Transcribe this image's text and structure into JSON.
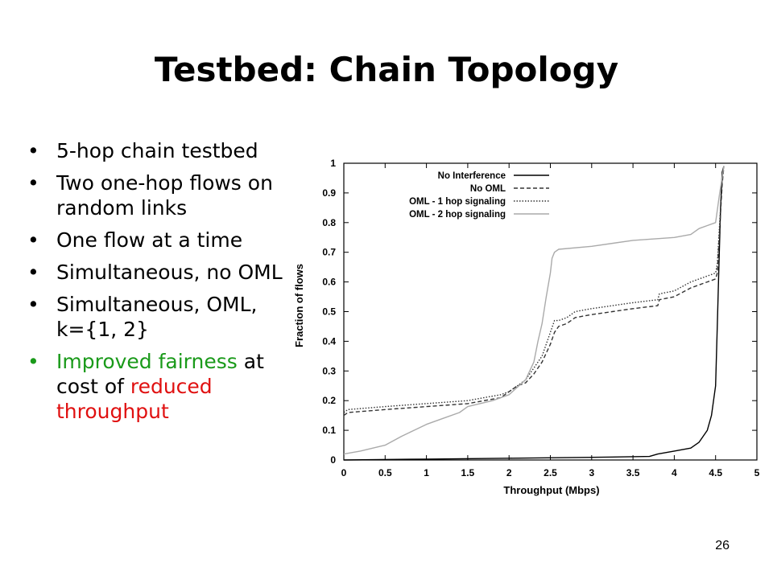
{
  "slide": {
    "title": "Testbed: Chain Topology",
    "page_number": "26",
    "bullet_glyph": "•",
    "bullets": [
      "5-hop chain testbed",
      "Two one-hop flows on random links",
      "One flow at a time",
      "Simultaneous, no OML",
      "Simultaneous, OML, k={1, 2}"
    ],
    "last_bullet": {
      "part1": "Improved fairness",
      "part2": " at cost of ",
      "part3": "reduced throughput"
    },
    "colors": {
      "green": "#1a9a1a",
      "red": "#e01010"
    }
  },
  "chart_data": {
    "type": "line",
    "xlabel": "Throughput (Mbps)",
    "ylabel": "Fraction of flows",
    "xlim": [
      0,
      5
    ],
    "ylim": [
      0,
      1
    ],
    "xticks": [
      "0",
      "0.5",
      "1",
      "1.5",
      "2",
      "2.5",
      "3",
      "3.5",
      "4",
      "4.5",
      "5"
    ],
    "yticks": [
      "0",
      "0.1",
      "0.2",
      "0.3",
      "0.4",
      "0.5",
      "0.6",
      "0.7",
      "0.8",
      "0.9",
      "1"
    ],
    "grid": false,
    "legend_position": "top-right",
    "series": [
      {
        "name": "No Interference",
        "style": "solid",
        "color": "#000000",
        "x": [
          0,
          1.0,
          2.0,
          3.0,
          3.7,
          3.8,
          4.0,
          4.2,
          4.3,
          4.4,
          4.45,
          4.5,
          4.52,
          4.54,
          4.56,
          4.58,
          4.6
        ],
        "y": [
          0,
          0.003,
          0.006,
          0.009,
          0.012,
          0.02,
          0.03,
          0.04,
          0.06,
          0.1,
          0.15,
          0.25,
          0.45,
          0.65,
          0.85,
          0.97,
          0.99
        ]
      },
      {
        "name": "No OML",
        "style": "dashed",
        "color": "#333333",
        "x": [
          0,
          0.05,
          0.5,
          1.0,
          1.5,
          1.9,
          2.0,
          2.1,
          2.2,
          2.3,
          2.4,
          2.5,
          2.55,
          2.6,
          2.7,
          2.8,
          3.0,
          3.5,
          3.8,
          3.82,
          4.0,
          4.2,
          4.3,
          4.4,
          4.5,
          4.52,
          4.55,
          4.58,
          4.6
        ],
        "y": [
          0.15,
          0.16,
          0.17,
          0.18,
          0.19,
          0.21,
          0.23,
          0.25,
          0.26,
          0.29,
          0.33,
          0.39,
          0.43,
          0.45,
          0.46,
          0.48,
          0.49,
          0.51,
          0.52,
          0.54,
          0.55,
          0.58,
          0.59,
          0.6,
          0.61,
          0.63,
          0.78,
          0.93,
          0.99
        ]
      },
      {
        "name": "OML - 1 hop signaling",
        "style": "dotted",
        "color": "#333333",
        "x": [
          0,
          0.05,
          0.5,
          1.0,
          1.5,
          1.9,
          2.0,
          2.1,
          2.2,
          2.3,
          2.4,
          2.5,
          2.55,
          2.6,
          2.7,
          2.8,
          3.0,
          3.5,
          3.8,
          3.82,
          4.0,
          4.2,
          4.3,
          4.4,
          4.5,
          4.52,
          4.55,
          4.58,
          4.6
        ],
        "y": [
          0.16,
          0.17,
          0.18,
          0.19,
          0.2,
          0.22,
          0.23,
          0.25,
          0.27,
          0.31,
          0.35,
          0.43,
          0.47,
          0.47,
          0.48,
          0.5,
          0.51,
          0.53,
          0.54,
          0.56,
          0.57,
          0.6,
          0.61,
          0.62,
          0.63,
          0.66,
          0.8,
          0.94,
          0.99
        ]
      },
      {
        "name": "OML - 2 hop signaling",
        "style": "solid",
        "color": "#aaaaaa",
        "x": [
          0,
          0.2,
          0.5,
          0.7,
          0.85,
          1.0,
          1.2,
          1.4,
          1.5,
          1.8,
          2.0,
          2.2,
          2.3,
          2.35,
          2.4,
          2.45,
          2.5,
          2.52,
          2.55,
          2.6,
          3.0,
          3.5,
          4.0,
          4.2,
          4.3,
          4.4,
          4.5,
          4.55,
          4.6
        ],
        "y": [
          0.02,
          0.03,
          0.05,
          0.08,
          0.1,
          0.12,
          0.14,
          0.16,
          0.18,
          0.2,
          0.22,
          0.27,
          0.33,
          0.4,
          0.46,
          0.55,
          0.63,
          0.68,
          0.7,
          0.71,
          0.72,
          0.74,
          0.75,
          0.76,
          0.78,
          0.79,
          0.8,
          0.9,
          0.99
        ]
      }
    ]
  }
}
